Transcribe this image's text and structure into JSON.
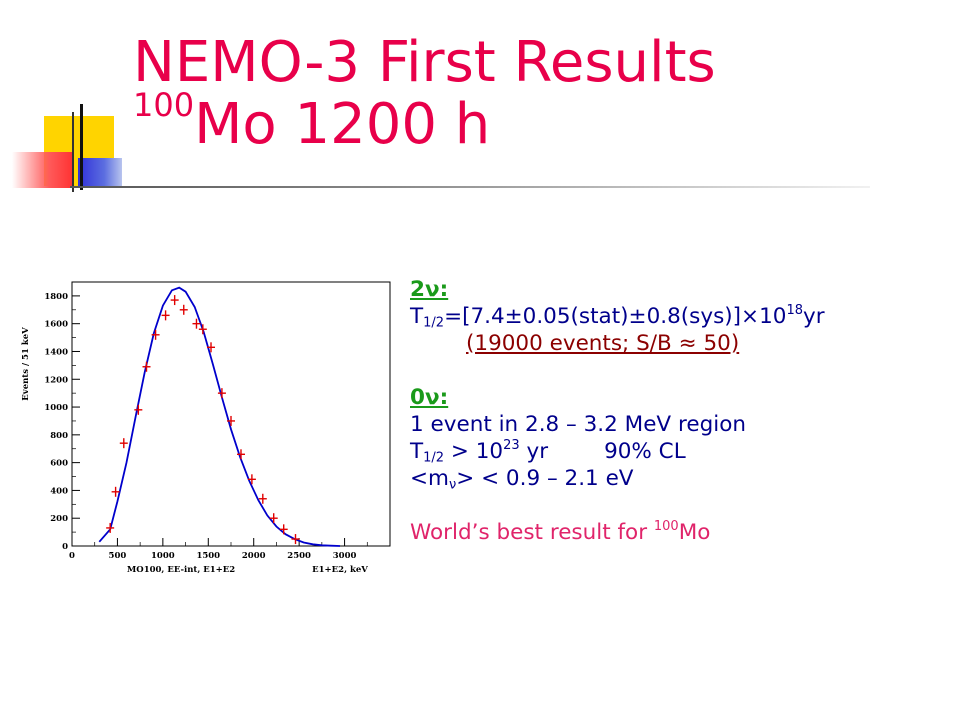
{
  "slide": {
    "title_line1": "NEMO-3 First Results",
    "title_line2_sup": "100",
    "title_line2_main": "Mo 1200 h"
  },
  "results": {
    "two_nu_label": "2ν:",
    "t_half_prefix": "T",
    "t_half_sub": "1/2",
    "t_half_value": "=[7.4±0.05(stat)±0.8(sys)]×10",
    "t_half_exp": "18",
    "t_half_unit": "yr",
    "events_note": "(19000 events; S/B ≈ 50)",
    "zero_nu_label": "0ν:",
    "event_line": "1 event in 2.8 – 3.2 MeV region",
    "limit_prefix": "T",
    "limit_sub": "1/2",
    "limit_value": " > 10",
    "limit_exp": "23",
    "limit_unit": " yr",
    "limit_cl": "90% CL",
    "mass_prefix": "<m",
    "mass_sub": "ν",
    "mass_value": "> < 0.9 – 2.1 eV",
    "world_best": "World’s best result for ",
    "world_best_sup": "100",
    "world_best_tail": "Mo"
  },
  "colors": {
    "title": "#e8004a",
    "body_text": "#00008b",
    "label_green": "#1a9a1a",
    "note_darkred": "#8b0000",
    "highlight_pink": "#e0246a",
    "data_points": "#e00000",
    "fit_curve": "#0000cc"
  },
  "chart_data": {
    "type": "scatter",
    "xlabel": "E1+E2, keV",
    "xlabel_left": "MO100, EE-int, E1+E2",
    "ylabel": "Events / 51 keV",
    "xlim": [
      0,
      3500
    ],
    "ylim": [
      0,
      1900
    ],
    "x_ticks": [
      0,
      500,
      1000,
      1500,
      2000,
      2500,
      3000
    ],
    "y_ticks": [
      0,
      200,
      400,
      600,
      800,
      1000,
      1200,
      1400,
      1600,
      1800
    ],
    "series": [
      {
        "kind": "points_with_errors",
        "x": [
          420,
          480,
          570,
          730,
          820,
          920,
          1030,
          1130,
          1230,
          1370,
          1440,
          1530,
          1650,
          1750,
          1860,
          1980,
          2100,
          2220,
          2330,
          2460
        ],
        "y": [
          130,
          390,
          740,
          980,
          1290,
          1520,
          1660,
          1770,
          1700,
          1600,
          1560,
          1430,
          1100,
          900,
          660,
          480,
          340,
          200,
          120,
          50
        ]
      },
      {
        "kind": "fit_curve",
        "x": [
          300,
          420,
          500,
          600,
          700,
          800,
          900,
          1000,
          1100,
          1180,
          1250,
          1350,
          1450,
          1550,
          1650,
          1750,
          1850,
          1950,
          2050,
          2150,
          2250,
          2350,
          2450,
          2550,
          2650,
          2750,
          2850,
          2950
        ],
        "y": [
          30,
          120,
          320,
          600,
          930,
          1250,
          1530,
          1730,
          1840,
          1860,
          1830,
          1720,
          1540,
          1310,
          1070,
          840,
          640,
          470,
          330,
          220,
          140,
          85,
          50,
          25,
          12,
          5,
          2,
          0
        ]
      }
    ]
  }
}
